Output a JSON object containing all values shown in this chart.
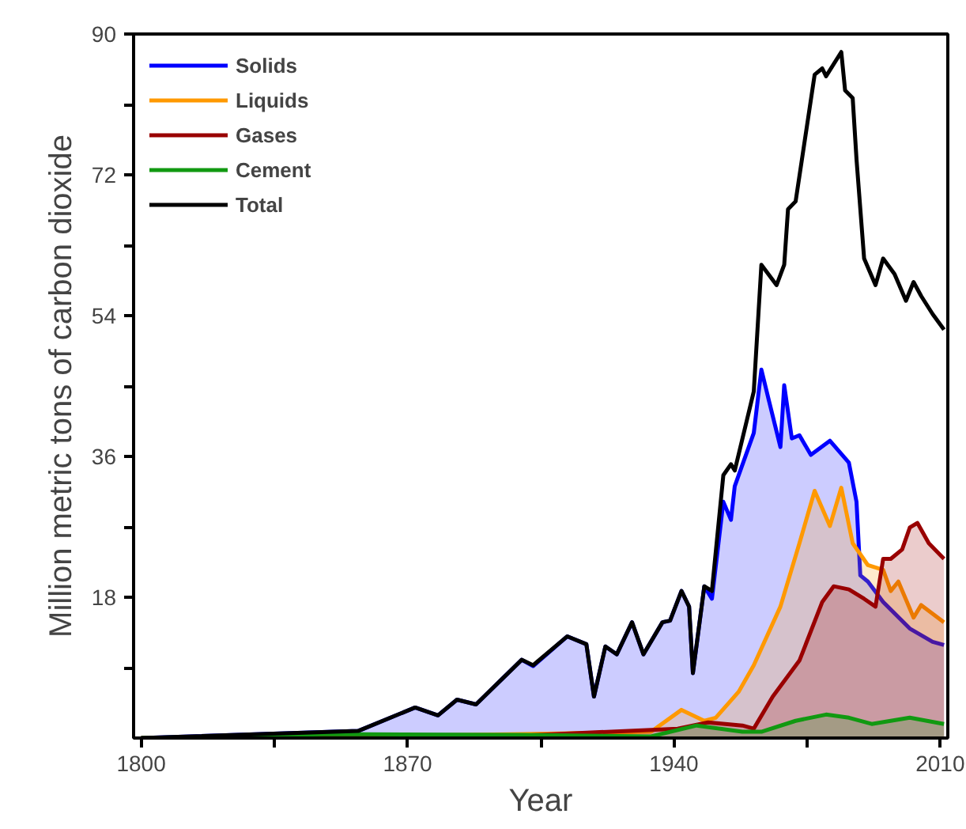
{
  "chart_data": {
    "type": "area",
    "xlabel": "Year",
    "ylabel": "Million metric tons of carbon dioxide",
    "xlim": [
      1798,
      2012
    ],
    "ylim": [
      0,
      90
    ],
    "xticks": [
      1800,
      {
        "value": 1835,
        "label": null
      },
      1870,
      {
        "value": 1905,
        "label": null
      },
      1940,
      {
        "value": 1975,
        "label": null
      },
      2010
    ],
    "yticks": [
      {
        "value": 9,
        "label": null
      },
      18,
      {
        "value": 27,
        "label": null
      },
      36,
      {
        "value": 45,
        "label": null
      },
      54,
      {
        "value": 63,
        "label": null
      },
      72,
      {
        "value": 81,
        "label": null
      },
      90
    ],
    "grid": false,
    "legend": "top left",
    "series": [
      {
        "name": "Solids",
        "color": "#0000ff",
        "x": [
          1800,
          1857,
          1872,
          1878,
          1883,
          1888,
          1900,
          1903,
          1912,
          1917,
          1919,
          1922,
          1925,
          1929,
          1932,
          1937,
          1939,
          1942,
          1944,
          1945,
          1948,
          1950,
          1953,
          1955,
          1956,
          1961,
          1963,
          1965,
          1968,
          1969,
          1971,
          1973,
          1976,
          1981,
          1986,
          1988,
          1989,
          1991,
          1995,
          2002,
          2008,
          2011
        ],
        "values": [
          0,
          0.9,
          3.9,
          2.9,
          4.9,
          4.3,
          10,
          9.2,
          13,
          12,
          5.3,
          11.7,
          10.7,
          14.8,
          10.7,
          14.8,
          15,
          18.8,
          16.8,
          8.3,
          19.4,
          17.8,
          30.2,
          27.9,
          32.2,
          39,
          47.1,
          43.1,
          37.2,
          45.1,
          38.3,
          38.7,
          36.2,
          38,
          35.2,
          30.2,
          20.8,
          20,
          17.4,
          14,
          12.3,
          11.9
        ]
      },
      {
        "name": "Liquids",
        "color": "#ff9900",
        "x": [
          1800,
          1870,
          1900,
          1934,
          1942,
          1948,
          1951,
          1957,
          1961,
          1968,
          1973,
          1977,
          1981,
          1984,
          1987,
          1991,
          1995,
          1997,
          1999,
          2003,
          2005,
          2011
        ],
        "values": [
          0,
          0.3,
          0.5,
          0.8,
          3.6,
          2.2,
          2.6,
          5.9,
          9.3,
          16.8,
          24.9,
          31.6,
          27.1,
          32,
          24.9,
          22.1,
          21.5,
          18.8,
          20,
          15.4,
          17,
          14.8
        ]
      },
      {
        "name": "Gases",
        "color": "#990000",
        "x": [
          1800,
          1900,
          1941,
          1949,
          1958,
          1961,
          1966,
          1973,
          1979,
          1982,
          1986,
          1990,
          1993,
          1995,
          1997,
          2000,
          2002,
          2004,
          2007,
          2011
        ],
        "values": [
          0,
          0.3,
          1.2,
          2,
          1.6,
          1.2,
          5.3,
          9.9,
          17.4,
          19.4,
          19,
          17.8,
          16.8,
          22.9,
          22.9,
          24.1,
          26.9,
          27.5,
          24.9,
          22.9
        ]
      },
      {
        "name": "Cement",
        "color": "#119911",
        "x": [
          1800,
          1850,
          1900,
          1934,
          1946,
          1958,
          1963,
          1972,
          1980,
          1986,
          1992,
          2002,
          2011
        ],
        "values": [
          0,
          0.5,
          0.4,
          0.2,
          1.6,
          0.8,
          0.8,
          2.2,
          3,
          2.6,
          1.8,
          2.6,
          1.8
        ]
      },
      {
        "name": "Total",
        "type": "line",
        "color": "#000000",
        "x": [
          1800,
          1857,
          1872,
          1878,
          1883,
          1888,
          1900,
          1903,
          1912,
          1917,
          1919,
          1922,
          1925,
          1929,
          1932,
          1937,
          1939,
          1942,
          1944,
          1945,
          1948,
          1950,
          1953,
          1955,
          1956,
          1961,
          1963,
          1967,
          1969,
          1970,
          1972,
          1977,
          1979,
          1980,
          1984,
          1985,
          1987,
          1988,
          1990,
          1993,
          1995,
          1998,
          2001,
          2003,
          2005,
          2008,
          2011
        ],
        "values": [
          0,
          0.9,
          3.9,
          2.9,
          4.9,
          4.3,
          10,
          9.3,
          13,
          12,
          5.3,
          11.7,
          10.7,
          14.8,
          10.7,
          14.8,
          15,
          18.8,
          16.8,
          8.3,
          19.4,
          18.8,
          33.6,
          35,
          34.2,
          44.3,
          60.5,
          57.9,
          60.5,
          67.6,
          68.6,
          84.8,
          85.6,
          84.6,
          87.7,
          82.8,
          81.8,
          74,
          61.3,
          57.9,
          61.3,
          59.3,
          55.9,
          58.3,
          56.5,
          54.2,
          52.2
        ]
      }
    ]
  }
}
